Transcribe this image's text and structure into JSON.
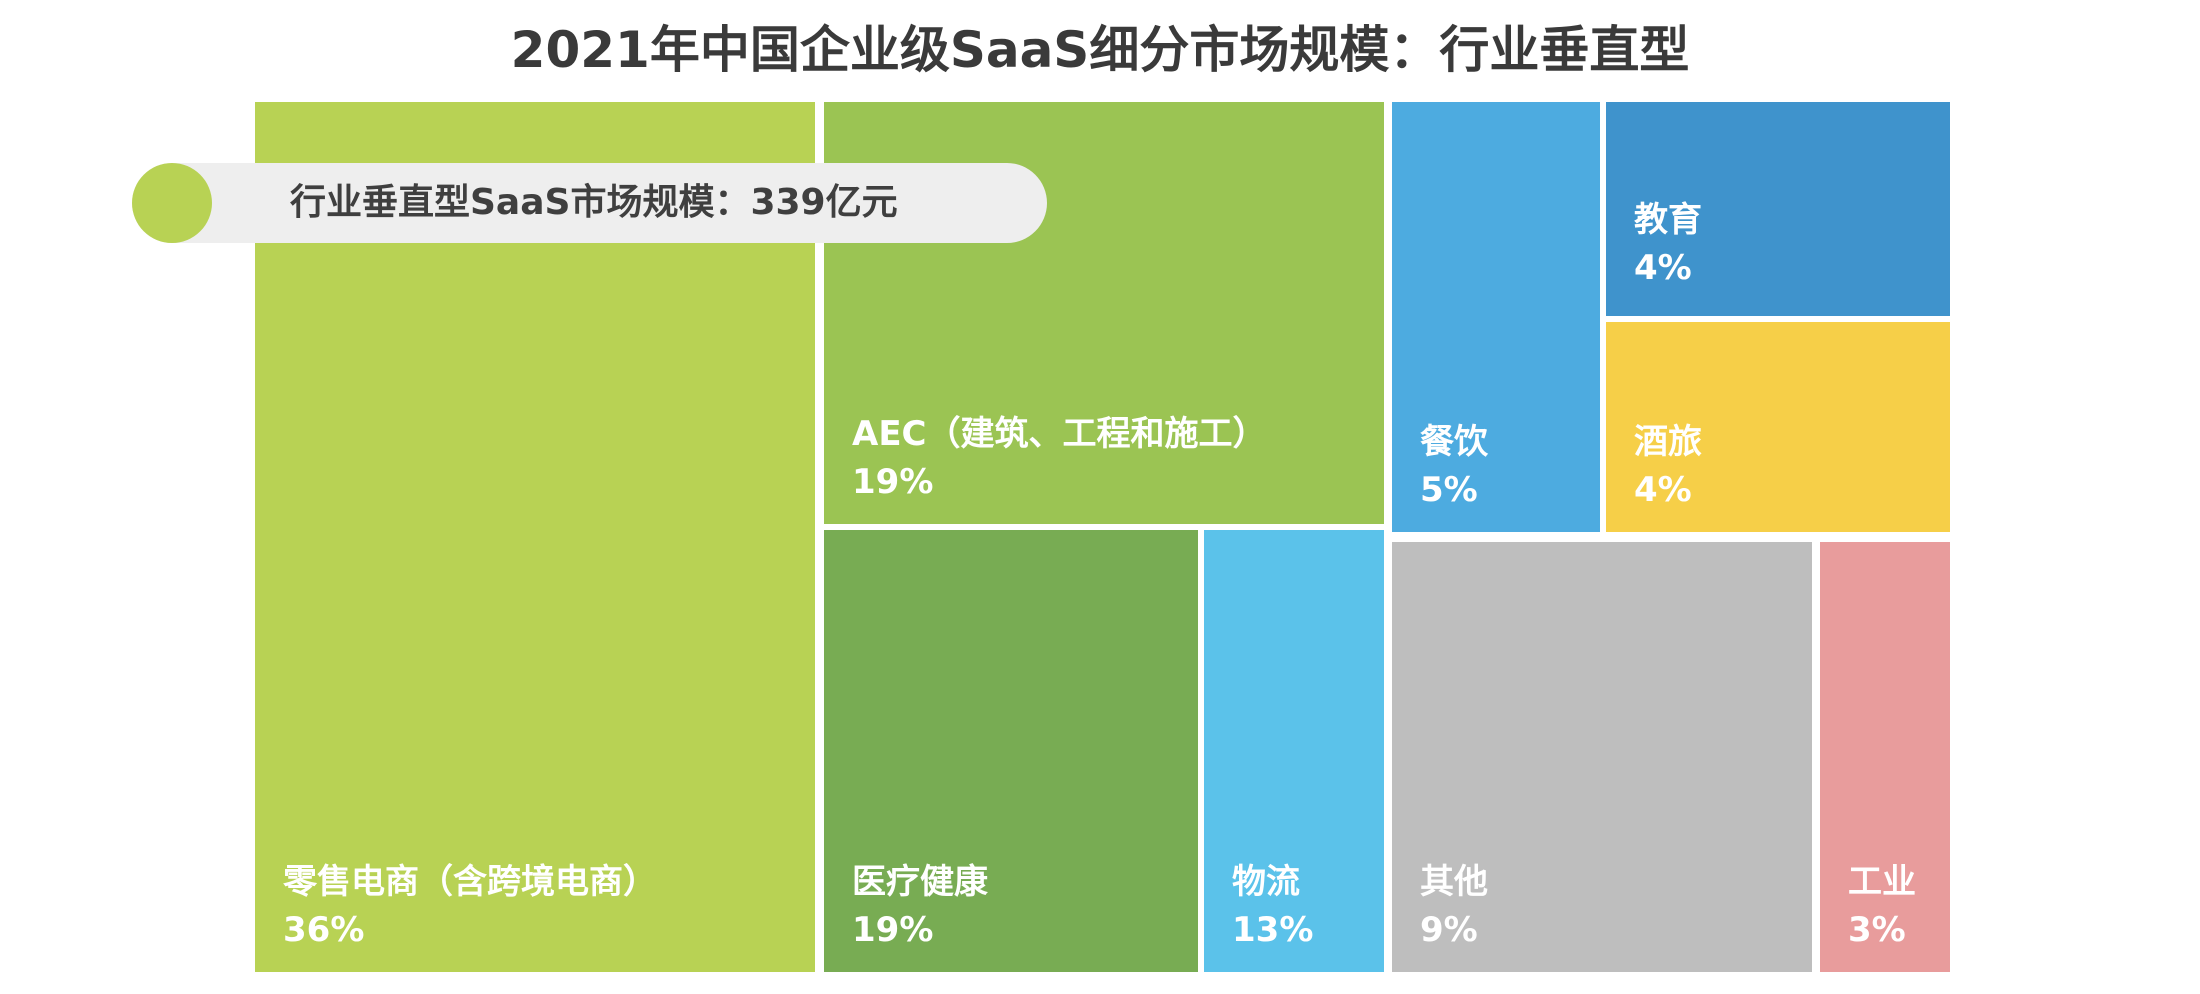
{
  "title": "2021年中国企业级SaaS细分市场规模：行业垂直型",
  "callout": {
    "text": "行业垂直型SaaS市场规模：339亿元",
    "dot_color": "#b8d254"
  },
  "chart_data": {
    "type": "treemap",
    "title": "2021年中国企业级SaaS细分市场规模：行业垂直型",
    "total_label": "行业垂直型SaaS市场规模：339亿元",
    "items": [
      {
        "name": "零售电商（含跨境电商）",
        "percent": 36,
        "label": "36%",
        "color": "#b8d254"
      },
      {
        "name": "AEC（建筑、工程和施工）",
        "percent": 19,
        "label": "19%",
        "color": "#9bc453"
      },
      {
        "name": "医疗健康",
        "percent": 19,
        "label": "19%",
        "color": "#78ac53"
      },
      {
        "name": "物流",
        "percent": 13,
        "label": "13%",
        "color": "#5bc2ea"
      },
      {
        "name": "餐饮",
        "percent": 5,
        "label": "5%",
        "color": "#4dabe0"
      },
      {
        "name": "教育",
        "percent": 4,
        "label": "4%",
        "color": "#3f93cc"
      },
      {
        "name": "酒旅",
        "percent": 4,
        "label": "4%",
        "color": "#f6cf48"
      },
      {
        "name": "其他",
        "percent": 9,
        "label": "9%",
        "color": "#bebebe"
      },
      {
        "name": "工业",
        "percent": 3,
        "label": "3%",
        "color": "#e89c9c"
      }
    ]
  }
}
